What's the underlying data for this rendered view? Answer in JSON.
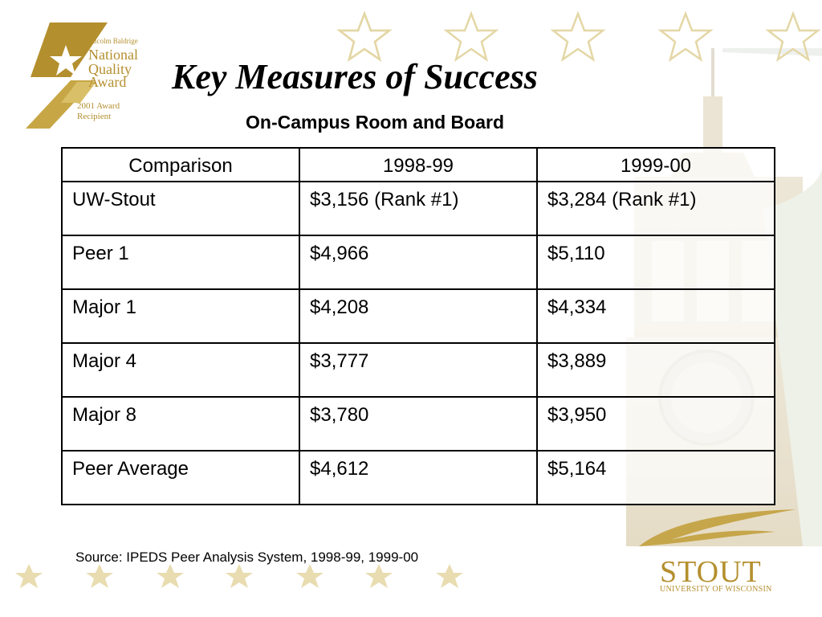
{
  "colors": {
    "gold": "#b48f2e",
    "star_outline": "#e4d7a6",
    "star_fill": "#e8dcb0",
    "text": "#000000"
  },
  "award": {
    "line1": "Malcolm Baldrige",
    "line2": "National",
    "line3": "Quality",
    "line4": "Award",
    "line5": "2001 Award",
    "line6": "Recipient"
  },
  "title": "Key Measures of Success",
  "subtitle": "On-Campus Room and Board",
  "table": {
    "headers": [
      "Comparison",
      "1998-99",
      "1999-00"
    ],
    "rows": [
      [
        "UW-Stout",
        "$3,156 (Rank #1)",
        "$3,284 (Rank #1)"
      ],
      [
        "Peer 1",
        "$4,966",
        "$5,110"
      ],
      [
        "Major 1",
        "$4,208",
        "$4,334"
      ],
      [
        "Major 4",
        "$3,777",
        "$3,889"
      ],
      [
        "Major 8",
        "$3,780",
        "$3,950"
      ],
      [
        "Peer Average",
        "$4,612",
        "$5,164"
      ]
    ]
  },
  "source": "Source: IPEDS Peer Analysis System, 1998-99, 1999-00",
  "stout": {
    "name": "STOUT",
    "sub": "UNIVERSITY OF WISCONSIN"
  }
}
